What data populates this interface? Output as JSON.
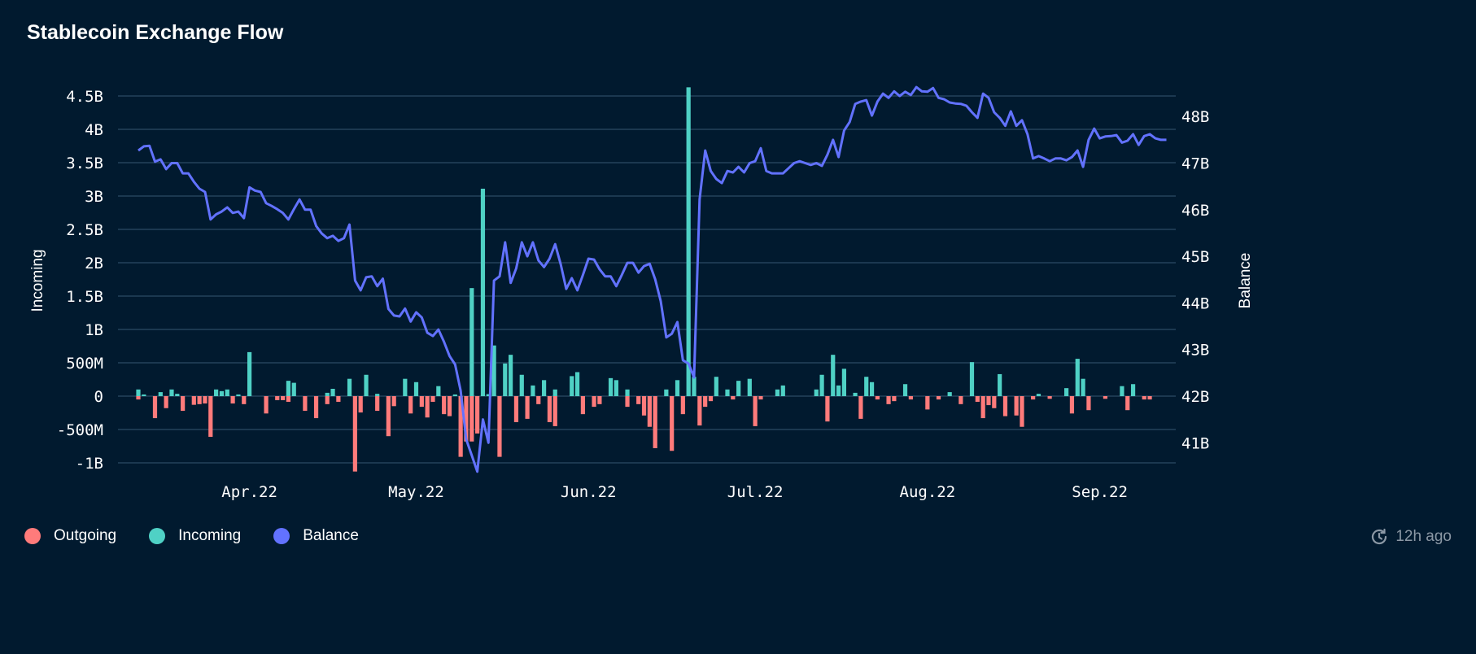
{
  "title": "Stablecoin Exchange Flow",
  "updated": "12h ago",
  "colors": {
    "background": "#011a2f",
    "grid": "#1b3850",
    "outgoing": "#ff7b7b",
    "incoming": "#4fd1c5",
    "balance": "#6272ff"
  },
  "legend": [
    {
      "label": "Outgoing",
      "color": "#ff7b7b"
    },
    {
      "label": "Incoming",
      "color": "#4fd1c5"
    },
    {
      "label": "Balance",
      "color": "#6272ff"
    }
  ],
  "chart_data": {
    "type": "bar+line",
    "title": "Stablecoin Exchange Flow",
    "start_date": "2022-03-12",
    "days": 184,
    "x_ticks": [
      {
        "label": "Apr.22",
        "day": 20
      },
      {
        "label": "May.22",
        "day": 50
      },
      {
        "label": "Jun.22",
        "day": 81
      },
      {
        "label": "Jul.22",
        "day": 111
      },
      {
        "label": "Aug.22",
        "day": 142
      },
      {
        "label": "Sep.22",
        "day": 173
      }
    ],
    "y_left": {
      "label": "Incoming",
      "range": [
        -1.15,
        4.6
      ],
      "ticks": [
        {
          "v": 4.5,
          "label": "4.5B"
        },
        {
          "v": 4,
          "label": "4B"
        },
        {
          "v": 3.5,
          "label": "3.5B"
        },
        {
          "v": 3,
          "label": "3B"
        },
        {
          "v": 2.5,
          "label": "2.5B"
        },
        {
          "v": 2,
          "label": "2B"
        },
        {
          "v": 1.5,
          "label": "1.5B"
        },
        {
          "v": 1,
          "label": "1B"
        },
        {
          "v": 0.5,
          "label": "500M"
        },
        {
          "v": 0,
          "label": "0"
        },
        {
          "v": -0.5,
          "label": "-500M"
        },
        {
          "v": -1,
          "label": "-1B"
        }
      ]
    },
    "y_right": {
      "label": "Balance",
      "ticks": [
        {
          "v": 48,
          "label": "48B"
        },
        {
          "v": 47,
          "label": "47B"
        },
        {
          "v": 46,
          "label": "46B"
        },
        {
          "v": 45,
          "label": "45B"
        },
        {
          "v": 44,
          "label": "44B"
        },
        {
          "v": 43,
          "label": "43B"
        },
        {
          "v": 42,
          "label": "42B"
        },
        {
          "v": 41,
          "label": "41B"
        }
      ]
    },
    "series": [
      {
        "name": "Incoming",
        "unit": "M USD",
        "points_day_value": [
          [
            0,
            100
          ],
          [
            1,
            25
          ],
          [
            4,
            60
          ],
          [
            6,
            100
          ],
          [
            7,
            35
          ],
          [
            14,
            100
          ],
          [
            15,
            75
          ],
          [
            16,
            100
          ],
          [
            18,
            25
          ],
          [
            20,
            660
          ],
          [
            27,
            230
          ],
          [
            28,
            200
          ],
          [
            34,
            50
          ],
          [
            35,
            110
          ],
          [
            38,
            260
          ],
          [
            41,
            320
          ],
          [
            43,
            35
          ],
          [
            48,
            260
          ],
          [
            50,
            210
          ],
          [
            54,
            150
          ],
          [
            57,
            25
          ],
          [
            60,
            1620
          ],
          [
            62,
            3110
          ],
          [
            63,
            30
          ],
          [
            64,
            760
          ],
          [
            66,
            490
          ],
          [
            67,
            620
          ],
          [
            69,
            320
          ],
          [
            71,
            160
          ],
          [
            73,
            240
          ],
          [
            75,
            100
          ],
          [
            78,
            300
          ],
          [
            79,
            360
          ],
          [
            85,
            270
          ],
          [
            86,
            240
          ],
          [
            88,
            100
          ],
          [
            95,
            100
          ],
          [
            97,
            240
          ],
          [
            99,
            4630
          ],
          [
            100,
            290
          ],
          [
            104,
            290
          ],
          [
            106,
            100
          ],
          [
            108,
            230
          ],
          [
            110,
            260
          ],
          [
            115,
            100
          ],
          [
            116,
            160
          ],
          [
            122,
            100
          ],
          [
            123,
            320
          ],
          [
            125,
            620
          ],
          [
            126,
            160
          ],
          [
            127,
            410
          ],
          [
            129,
            50
          ],
          [
            131,
            290
          ],
          [
            132,
            210
          ],
          [
            138,
            180
          ],
          [
            146,
            60
          ],
          [
            150,
            510
          ],
          [
            155,
            330
          ],
          [
            162,
            35
          ],
          [
            167,
            120
          ],
          [
            169,
            560
          ],
          [
            170,
            260
          ],
          [
            177,
            150
          ],
          [
            179,
            180
          ]
        ]
      },
      {
        "name": "Outgoing",
        "unit": "M USD",
        "points_day_value": [
          [
            0,
            -50
          ],
          [
            3,
            -330
          ],
          [
            5,
            -180
          ],
          [
            8,
            -220
          ],
          [
            10,
            -130
          ],
          [
            11,
            -120
          ],
          [
            12,
            -110
          ],
          [
            13,
            -610
          ],
          [
            17,
            -110
          ],
          [
            19,
            -120
          ],
          [
            23,
            -260
          ],
          [
            25,
            -60
          ],
          [
            26,
            -60
          ],
          [
            27,
            -85
          ],
          [
            30,
            -220
          ],
          [
            32,
            -330
          ],
          [
            34,
            -120
          ],
          [
            36,
            -85
          ],
          [
            39,
            -1130
          ],
          [
            40,
            -245
          ],
          [
            43,
            -220
          ],
          [
            45,
            -600
          ],
          [
            46,
            -150
          ],
          [
            49,
            -260
          ],
          [
            51,
            -160
          ],
          [
            52,
            -320
          ],
          [
            53,
            -85
          ],
          [
            55,
            -270
          ],
          [
            56,
            -300
          ],
          [
            58,
            -910
          ],
          [
            59,
            -680
          ],
          [
            60,
            -680
          ],
          [
            61,
            -560
          ],
          [
            65,
            -910
          ],
          [
            68,
            -390
          ],
          [
            70,
            -340
          ],
          [
            72,
            -120
          ],
          [
            74,
            -390
          ],
          [
            75,
            -450
          ],
          [
            80,
            -270
          ],
          [
            82,
            -160
          ],
          [
            83,
            -120
          ],
          [
            88,
            -160
          ],
          [
            90,
            -120
          ],
          [
            91,
            -290
          ],
          [
            92,
            -460
          ],
          [
            93,
            -780
          ],
          [
            96,
            -820
          ],
          [
            98,
            -270
          ],
          [
            101,
            -440
          ],
          [
            102,
            -160
          ],
          [
            103,
            -75
          ],
          [
            107,
            -50
          ],
          [
            111,
            -450
          ],
          [
            112,
            -50
          ],
          [
            124,
            -380
          ],
          [
            130,
            -340
          ],
          [
            133,
            -50
          ],
          [
            135,
            -120
          ],
          [
            136,
            -75
          ],
          [
            139,
            -50
          ],
          [
            142,
            -200
          ],
          [
            144,
            -50
          ],
          [
            148,
            -120
          ],
          [
            151,
            -85
          ],
          [
            152,
            -330
          ],
          [
            153,
            -135
          ],
          [
            154,
            -180
          ],
          [
            156,
            -300
          ],
          [
            158,
            -290
          ],
          [
            159,
            -460
          ],
          [
            161,
            -50
          ],
          [
            164,
            -40
          ],
          [
            168,
            -260
          ],
          [
            171,
            -210
          ],
          [
            174,
            -40
          ],
          [
            178,
            -210
          ],
          [
            181,
            -50
          ],
          [
            182,
            -50
          ]
        ]
      },
      {
        "name": "Balance",
        "unit": "B USD",
        "daily_values": [
          47.27,
          47.36,
          47.37,
          47.03,
          47.08,
          46.87,
          47.0,
          47.0,
          46.78,
          46.78,
          46.6,
          46.45,
          46.38,
          45.79,
          45.9,
          45.96,
          46.05,
          45.93,
          45.96,
          45.82,
          46.48,
          46.41,
          46.38,
          46.14,
          46.08,
          46.01,
          45.93,
          45.79,
          46.01,
          46.22,
          46.0,
          46.0,
          45.65,
          45.49,
          45.39,
          45.44,
          45.33,
          45.39,
          45.68,
          44.48,
          44.27,
          44.55,
          44.57,
          44.36,
          44.52,
          43.87,
          43.73,
          43.71,
          43.88,
          43.6,
          43.8,
          43.69,
          43.36,
          43.29,
          43.43,
          43.17,
          42.86,
          42.68,
          42.12,
          41.07,
          40.73,
          40.38,
          41.5,
          41.0,
          44.48,
          44.57,
          45.3,
          44.43,
          44.74,
          45.3,
          45.0,
          45.3,
          44.91,
          44.77,
          44.95,
          45.26,
          44.83,
          44.3,
          44.53,
          44.27,
          44.6,
          44.95,
          44.93,
          44.72,
          44.57,
          44.57,
          44.36,
          44.6,
          44.86,
          44.86,
          44.65,
          44.79,
          44.84,
          44.51,
          44.04,
          43.26,
          43.34,
          43.59,
          42.77,
          42.7,
          42.4,
          46.22,
          47.27,
          46.83,
          46.66,
          46.57,
          46.83,
          46.8,
          46.92,
          46.8,
          47.0,
          47.04,
          47.32,
          46.83,
          46.78,
          46.78,
          46.78,
          46.89,
          47.0,
          47.04,
          47.0,
          46.96,
          47.0,
          46.94,
          47.18,
          47.5,
          47.13,
          47.7,
          47.88,
          48.27,
          48.32,
          48.35,
          48.02,
          48.32,
          48.49,
          48.4,
          48.54,
          48.44,
          48.53,
          48.46,
          48.63,
          48.54,
          48.53,
          48.61,
          48.4,
          48.37,
          48.3,
          48.28,
          48.27,
          48.23,
          48.09,
          47.97,
          48.49,
          48.4,
          48.09,
          47.97,
          47.8,
          48.11,
          47.8,
          47.92,
          47.62,
          47.1,
          47.15,
          47.1,
          47.04,
          47.1,
          47.1,
          47.06,
          47.13,
          47.27,
          46.92,
          47.5,
          47.74,
          47.53,
          47.57,
          47.58,
          47.6,
          47.44,
          47.48,
          47.62,
          47.39,
          47.58,
          47.62,
          47.53,
          47.5,
          47.5
        ]
      }
    ],
    "legend": "bottom-left",
    "grid": true
  }
}
